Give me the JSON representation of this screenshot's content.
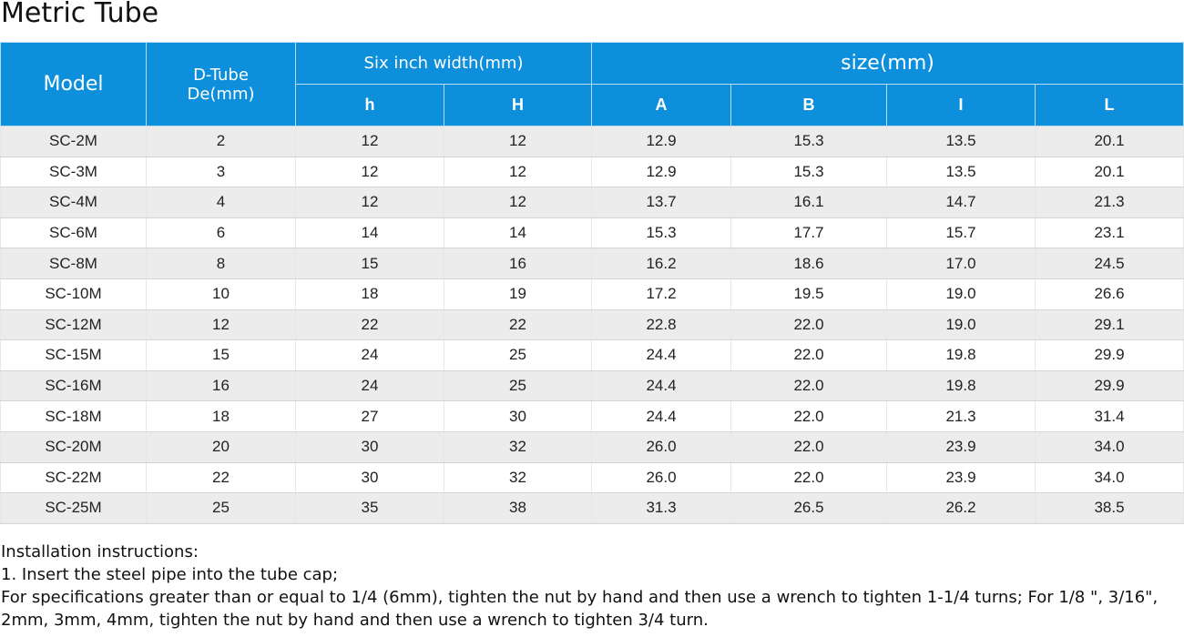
{
  "page": {
    "title": "Metric Tube"
  },
  "table": {
    "headers": {
      "model": "Model",
      "dtube_line1": "D-Tube",
      "dtube_line2": "De(mm)",
      "six_inch_width": "Six inch width(mm)",
      "size": "size(mm)",
      "h_small": "h",
      "h_big": "H",
      "a": "A",
      "b": "B",
      "i": "I",
      "l": "L"
    },
    "rows": [
      [
        "SC-2M",
        "2",
        "12",
        "12",
        "12.9",
        "15.3",
        "13.5",
        "20.1"
      ],
      [
        "SC-3M",
        "3",
        "12",
        "12",
        "12.9",
        "15.3",
        "13.5",
        "20.1"
      ],
      [
        "SC-4M",
        "4",
        "12",
        "12",
        "13.7",
        "16.1",
        "14.7",
        "21.3"
      ],
      [
        "SC-6M",
        "6",
        "14",
        "14",
        "15.3",
        "17.7",
        "15.7",
        "23.1"
      ],
      [
        "SC-8M",
        "8",
        "15",
        "16",
        "16.2",
        "18.6",
        "17.0",
        "24.5"
      ],
      [
        "SC-10M",
        "10",
        "18",
        "19",
        "17.2",
        "19.5",
        "19.0",
        "26.6"
      ],
      [
        "SC-12M",
        "12",
        "22",
        "22",
        "22.8",
        "22.0",
        "19.0",
        "29.1"
      ],
      [
        "SC-15M",
        "15",
        "24",
        "25",
        "24.4",
        "22.0",
        "19.8",
        "29.9"
      ],
      [
        "SC-16M",
        "16",
        "24",
        "25",
        "24.4",
        "22.0",
        "19.8",
        "29.9"
      ],
      [
        "SC-18M",
        "18",
        "27",
        "30",
        "24.4",
        "22.0",
        "21.3",
        "31.4"
      ],
      [
        "SC-20M",
        "20",
        "30",
        "32",
        "26.0",
        "22.0",
        "23.9",
        "34.0"
      ],
      [
        "SC-22M",
        "22",
        "30",
        "32",
        "26.0",
        "22.0",
        "23.9",
        "34.0"
      ],
      [
        "SC-25M",
        "25",
        "35",
        "38",
        "31.3",
        "26.5",
        "26.2",
        "38.5"
      ]
    ]
  },
  "instructions": {
    "heading": "Installation instructions:",
    "step1": "1. Insert the steel pipe into the tube cap;",
    "step2": "For specifications greater than or equal to 1/4 (6mm), tighten the nut by hand and then use a wrench to tighten 1-1/4 turns; For 1/8 \", 3/16\", 2mm, 3mm, 4mm, tighten the nut by hand and then use a wrench to tighten 3/4 turn."
  },
  "colors": {
    "header_bg": "#0e8fdc",
    "stripe_bg": "#ececec"
  }
}
